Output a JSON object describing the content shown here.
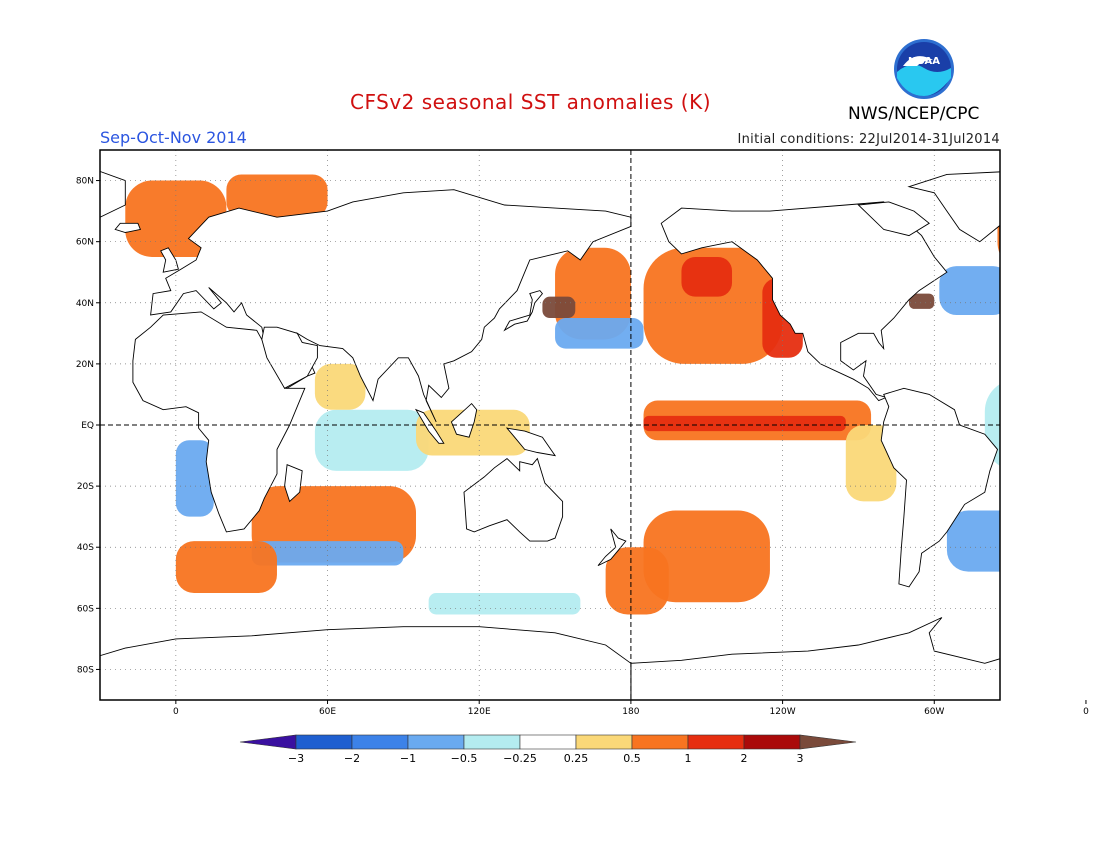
{
  "header": {
    "title": "CFSv2 seasonal SST anomalies (K)",
    "season": "Sep-Oct-Nov 2014",
    "initial_conditions": "Initial conditions: 22Jul2014-31Jul2014",
    "agency": "NWS/NCEP/CPC",
    "logo_text": "NOAA"
  },
  "map": {
    "lat_labels": [
      "80N",
      "60N",
      "40N",
      "20N",
      "EQ",
      "20S",
      "40S",
      "60S",
      "80S"
    ],
    "lon_labels": [
      "0",
      "60E",
      "120E",
      "180",
      "120W",
      "60W",
      "0"
    ],
    "colors": {
      "land": "#ffffff",
      "coast": "#000000"
    }
  },
  "colorbar": {
    "labels": [
      "-3",
      "-2",
      "-1",
      "-0.5",
      "-0.25",
      "0.25",
      "0.5",
      "1",
      "2",
      "3"
    ],
    "colors": [
      "#3a10a0",
      "#1f5fd0",
      "#3c82e8",
      "#6aaaf0",
      "#b4ecf0",
      "#ffffff",
      "#fad878",
      "#f87420",
      "#e62e10",
      "#aa0a0a",
      "#7a4a3a"
    ]
  },
  "anomalies": [
    {
      "name": "equatorial-pacific-warm",
      "lon": [
        -175,
        -85
      ],
      "lat": [
        -5,
        8
      ],
      "level": 1
    },
    {
      "name": "equatorial-pacific-core",
      "lon": [
        -175,
        -95
      ],
      "lat": [
        -2,
        3
      ],
      "level": 2
    },
    {
      "name": "ne-pacific-warm",
      "lon": [
        -175,
        -120
      ],
      "lat": [
        20,
        58
      ],
      "level": 1
    },
    {
      "name": "ne-pacific-core",
      "lon": [
        -160,
        -140
      ],
      "lat": [
        42,
        55
      ],
      "level": 2
    },
    {
      "name": "california-coast",
      "lon": [
        -128,
        -112
      ],
      "lat": [
        22,
        48
      ],
      "level": 2
    },
    {
      "name": "nw-pacific-warm",
      "lon": [
        150,
        180
      ],
      "lat": [
        28,
        58
      ],
      "level": 1
    },
    {
      "name": "kuroshio-core",
      "lon": [
        145,
        158
      ],
      "lat": [
        35,
        42
      ],
      "level": 3
    },
    {
      "name": "north-pacific-cool",
      "lon": [
        150,
        185
      ],
      "lat": [
        25,
        35
      ],
      "level": -1
    },
    {
      "name": "south-pacific-warm",
      "lon": [
        -175,
        -125
      ],
      "lat": [
        -58,
        -28
      ],
      "level": 1
    },
    {
      "name": "south-pacific-warm-2",
      "lon": [
        170,
        195
      ],
      "lat": [
        -62,
        -40
      ],
      "level": 1
    },
    {
      "name": "south-indian-warm",
      "lon": [
        30,
        95
      ],
      "lat": [
        -45,
        -20
      ],
      "level": 1
    },
    {
      "name": "south-indian-cool",
      "lon": [
        30,
        90
      ],
      "lat": [
        -46,
        -38
      ],
      "level": -1
    },
    {
      "name": "north-atlantic-warm",
      "lon": [
        -35,
        10
      ],
      "lat": [
        50,
        78
      ],
      "level": 1
    },
    {
      "name": "north-atlantic-cool",
      "lon": [
        -58,
        -30
      ],
      "lat": [
        36,
        52
      ],
      "level": -1
    },
    {
      "name": "gulf-stream-core",
      "lon": [
        -70,
        -60
      ],
      "lat": [
        38,
        43
      ],
      "level": 3
    },
    {
      "name": "nordic-warm",
      "lon": [
        -20,
        20
      ],
      "lat": [
        55,
        80
      ],
      "level": 1
    },
    {
      "name": "barents-warm",
      "lon": [
        20,
        60
      ],
      "lat": [
        68,
        82
      ],
      "level": 1
    },
    {
      "name": "south-atlantic-cool",
      "lon": [
        -55,
        -15
      ],
      "lat": [
        -48,
        -28
      ],
      "level": -1
    },
    {
      "name": "tropical-atlantic-cool",
      "lon": [
        -40,
        10
      ],
      "lat": [
        -15,
        15
      ],
      "level": -0.5
    },
    {
      "name": "benguela-cool",
      "lon": [
        0,
        15
      ],
      "lat": [
        -30,
        -5
      ],
      "level": -1
    },
    {
      "name": "indian-ocean-cool",
      "lon": [
        55,
        100
      ],
      "lat": [
        -15,
        5
      ],
      "level": -0.5
    },
    {
      "name": "arabian-sea-warm",
      "lon": [
        55,
        75
      ],
      "lat": [
        5,
        20
      ],
      "level": 0.5
    },
    {
      "name": "maritime-continent-warm",
      "lon": [
        95,
        140
      ],
      "lat": [
        -10,
        5
      ],
      "level": 0.5
    },
    {
      "name": "southern-ocean-warm",
      "lon": [
        0,
        40
      ],
      "lat": [
        -55,
        -38
      ],
      "level": 1
    },
    {
      "name": "antarctic-cool",
      "lon": [
        100,
        160
      ],
      "lat": [
        -62,
        -55
      ],
      "level": -0.5
    },
    {
      "name": "peru-warm",
      "lon": [
        -95,
        -75
      ],
      "lat": [
        -25,
        0
      ],
      "level": 0.5
    }
  ]
}
